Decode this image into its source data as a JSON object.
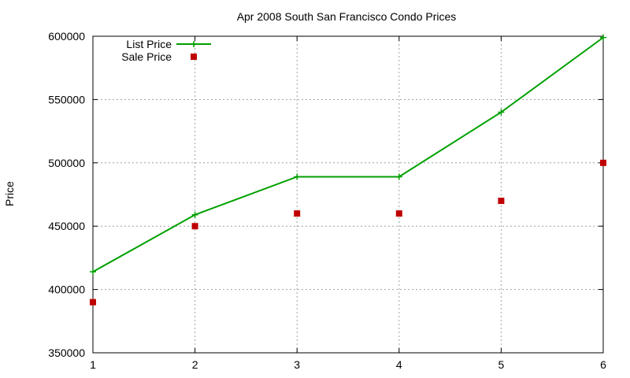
{
  "chart_data": {
    "type": "line",
    "title": "Apr 2008 South San Francisco Condo Prices",
    "xlabel": "",
    "ylabel": "Price",
    "xlim": [
      1,
      6
    ],
    "ylim": [
      350000,
      600000
    ],
    "x_ticks": [
      "1",
      "2",
      "3",
      "4",
      "5",
      "6"
    ],
    "y_ticks": [
      "350000",
      "400000",
      "450000",
      "500000",
      "550000",
      "600000"
    ],
    "grid": true,
    "legend_position": "top-left",
    "series": [
      {
        "name": "List Price",
        "style": "linespoints",
        "color": "#00a000",
        "x": [
          1,
          2,
          3,
          4,
          5,
          6
        ],
        "values": [
          414000,
          459000,
          489000,
          489000,
          540000,
          599000
        ]
      },
      {
        "name": "Sale Price",
        "style": "points",
        "color": "#c00000",
        "x": [
          1,
          2,
          3,
          4,
          5,
          6
        ],
        "values": [
          390000,
          450000,
          460000,
          460000,
          470000,
          500000
        ]
      }
    ]
  }
}
